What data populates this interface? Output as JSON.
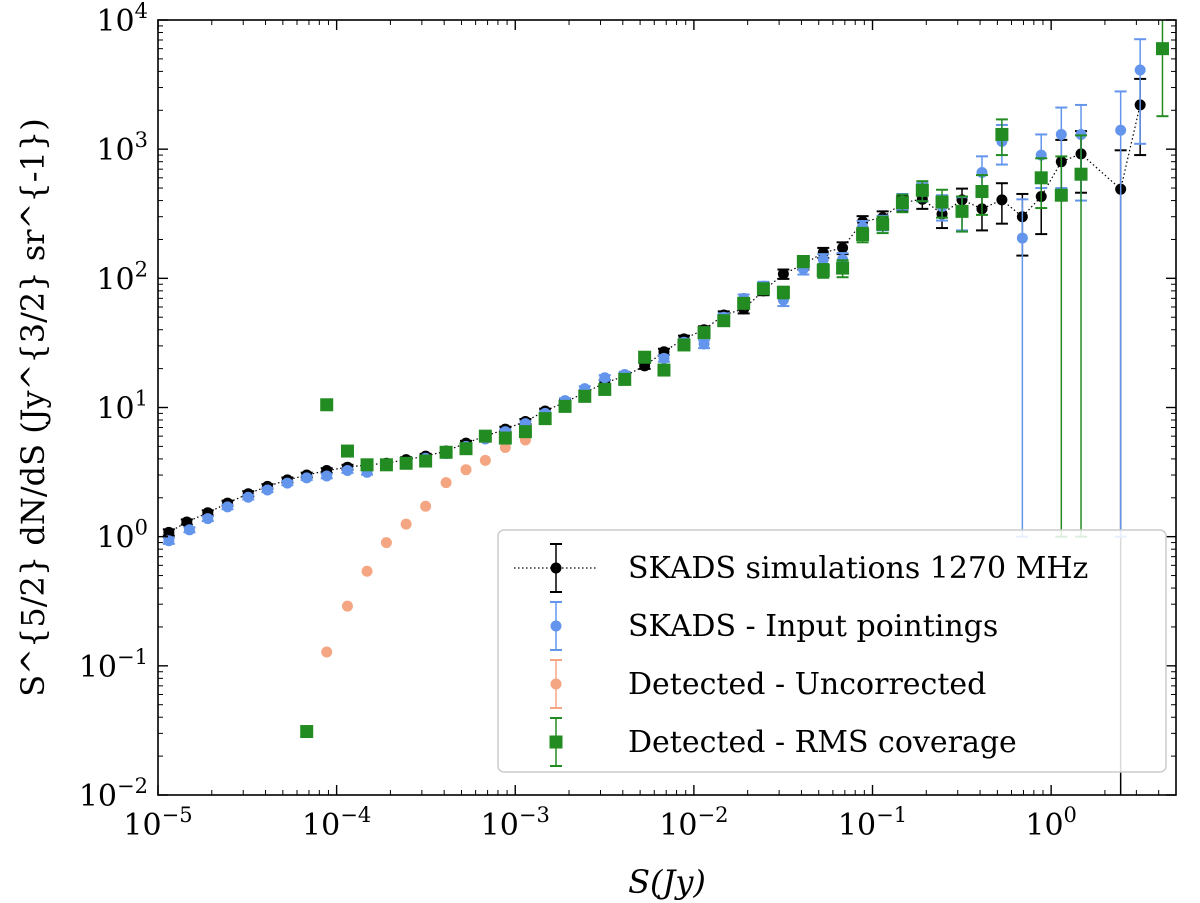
{
  "chart_data": {
    "type": "scatter",
    "xscale": "log",
    "yscale": "log",
    "xlim": [
      1e-05,
      5.0
    ],
    "ylim": [
      0.01,
      10000
    ],
    "xlabel": "S(Jy)",
    "ylabel": "S^{5/2} dN/dS (Jy^{3/2} sr^{-1})",
    "x_ticks": [
      {
        "value": 1e-05,
        "base": "10",
        "exp": "−5"
      },
      {
        "value": 0.0001,
        "base": "10",
        "exp": "−4"
      },
      {
        "value": 0.001,
        "base": "10",
        "exp": "−3"
      },
      {
        "value": 0.01,
        "base": "10",
        "exp": "−2"
      },
      {
        "value": 0.1,
        "base": "10",
        "exp": "−1"
      },
      {
        "value": 1,
        "base": "10",
        "exp": "0"
      }
    ],
    "y_ticks": [
      {
        "value": 0.01,
        "base": "10",
        "exp": "−2"
      },
      {
        "value": 0.1,
        "base": "10",
        "exp": "−1"
      },
      {
        "value": 1,
        "base": "10",
        "exp": "0"
      },
      {
        "value": 10,
        "base": "10",
        "exp": "1"
      },
      {
        "value": 100,
        "base": "10",
        "exp": "2"
      },
      {
        "value": 1000,
        "base": "10",
        "exp": "3"
      },
      {
        "value": 10000,
        "base": "10",
        "exp": "4"
      }
    ],
    "legend_position": "lower-right",
    "series": [
      {
        "name": "SKADS simulations 1270 MHz",
        "color": "#000000",
        "marker": "circle",
        "line": "dotted",
        "points": [
          {
            "x": 1.15e-05,
            "y": 1.08,
            "err": 0.06
          },
          {
            "x": 1.45e-05,
            "y": 1.3,
            "err": 0.06
          },
          {
            "x": 1.9e-05,
            "y": 1.53,
            "err": 0.07
          },
          {
            "x": 2.45e-05,
            "y": 1.82,
            "err": 0.08
          },
          {
            "x": 3.2e-05,
            "y": 2.15,
            "err": 0.1
          },
          {
            "x": 4.1e-05,
            "y": 2.45,
            "err": 0.1
          },
          {
            "x": 5.3e-05,
            "y": 2.75,
            "err": 0.12
          },
          {
            "x": 6.8e-05,
            "y": 3.0,
            "err": 0.13
          },
          {
            "x": 8.8e-05,
            "y": 3.25,
            "err": 0.14
          },
          {
            "x": 0.000115,
            "y": 3.45,
            "err": 0.15
          },
          {
            "x": 0.000148,
            "y": 3.6,
            "err": 0.15
          },
          {
            "x": 0.00019,
            "y": 3.7,
            "err": 0.16
          },
          {
            "x": 0.000245,
            "y": 3.95,
            "err": 0.17
          },
          {
            "x": 0.000315,
            "y": 4.2,
            "err": 0.18
          },
          {
            "x": 0.00041,
            "y": 4.6,
            "err": 0.2
          },
          {
            "x": 0.00053,
            "y": 5.3,
            "err": 0.22
          },
          {
            "x": 0.00068,
            "y": 6.0,
            "err": 0.25
          },
          {
            "x": 0.00088,
            "y": 6.8,
            "err": 0.3
          },
          {
            "x": 0.00114,
            "y": 7.8,
            "err": 0.35
          },
          {
            "x": 0.00147,
            "y": 9.4,
            "err": 0.4
          },
          {
            "x": 0.0019,
            "y": 11.0,
            "err": 0.5
          },
          {
            "x": 0.00245,
            "y": 13.0,
            "err": 0.6
          },
          {
            "x": 0.00317,
            "y": 15.5,
            "err": 0.8
          },
          {
            "x": 0.0041,
            "y": 17.5,
            "err": 0.9
          },
          {
            "x": 0.0053,
            "y": 21.0,
            "err": 1.1
          },
          {
            "x": 0.0068,
            "y": 27.0,
            "err": 1.5
          },
          {
            "x": 0.0088,
            "y": 34.0,
            "err": 2.0
          },
          {
            "x": 0.0114,
            "y": 40.0,
            "err": 2.5
          },
          {
            "x": 0.0147,
            "y": 52.0,
            "err": 3.5
          },
          {
            "x": 0.019,
            "y": 58.0,
            "err": 4.5
          },
          {
            "x": 0.0245,
            "y": 80.0,
            "err": 6.0
          },
          {
            "x": 0.0317,
            "y": 108.0,
            "err": 9.0
          },
          {
            "x": 0.041,
            "y": 128.0,
            "err": 11.0
          },
          {
            "x": 0.053,
            "y": 158.0,
            "err": 14.0
          },
          {
            "x": 0.068,
            "y": 172.0,
            "err": 18.0
          },
          {
            "x": 0.088,
            "y": 275.0,
            "err": 28.0
          },
          {
            "x": 0.114,
            "y": 295.0,
            "err": 35.0
          },
          {
            "x": 0.147,
            "y": 385.0,
            "err": 50.0
          },
          {
            "x": 0.19,
            "y": 410.0,
            "err": 65.0
          },
          {
            "x": 0.245,
            "y": 315.0,
            "err": 70.0
          },
          {
            "x": 0.317,
            "y": 405.0,
            "err": 90.0
          },
          {
            "x": 0.41,
            "y": 345.0,
            "err": 110.0
          },
          {
            "x": 0.53,
            "y": 405.0,
            "err": 140.0
          },
          {
            "x": 0.69,
            "y": 300.0,
            "err": 150.0
          },
          {
            "x": 0.88,
            "y": 430.0,
            "err": 210.0
          },
          {
            "x": 1.14,
            "y": 800.0,
            "err": 380.0
          },
          {
            "x": 1.47,
            "y": 920.0,
            "err": 460.0
          },
          {
            "x": 2.45,
            "y": 490.0,
            "err": 490.0
          },
          {
            "x": 3.15,
            "y": 2200.0,
            "err": 1300.0
          }
        ]
      },
      {
        "name": "SKADS - Input pointings",
        "color": "#6495ed",
        "marker": "circle",
        "line": "none",
        "points": [
          {
            "x": 1.15e-05,
            "y": 0.93,
            "err": 0.05
          },
          {
            "x": 1.5e-05,
            "y": 1.13,
            "err": 0.05
          },
          {
            "x": 1.9e-05,
            "y": 1.38,
            "err": 0.06
          },
          {
            "x": 2.45e-05,
            "y": 1.7,
            "err": 0.07
          },
          {
            "x": 3.2e-05,
            "y": 2.02,
            "err": 0.08
          },
          {
            "x": 4.1e-05,
            "y": 2.3,
            "err": 0.09
          },
          {
            "x": 5.3e-05,
            "y": 2.6,
            "err": 0.1
          },
          {
            "x": 6.8e-05,
            "y": 2.85,
            "err": 0.11
          },
          {
            "x": 8.8e-05,
            "y": 2.95,
            "err": 0.12
          },
          {
            "x": 0.000115,
            "y": 3.25,
            "err": 0.13
          },
          {
            "x": 0.000148,
            "y": 3.15,
            "err": 0.13
          },
          {
            "x": 0.00019,
            "y": 3.6,
            "err": 0.14
          },
          {
            "x": 0.000245,
            "y": 3.75,
            "err": 0.15
          },
          {
            "x": 0.000315,
            "y": 4.05,
            "err": 0.16
          },
          {
            "x": 0.00041,
            "y": 4.4,
            "err": 0.18
          },
          {
            "x": 0.00053,
            "y": 5.0,
            "err": 0.2
          },
          {
            "x": 0.00068,
            "y": 5.7,
            "err": 0.24
          },
          {
            "x": 0.00088,
            "y": 6.5,
            "err": 0.28
          },
          {
            "x": 0.00114,
            "y": 7.5,
            "err": 0.32
          },
          {
            "x": 0.00147,
            "y": 9.0,
            "err": 0.4
          },
          {
            "x": 0.0019,
            "y": 11.3,
            "err": 0.5
          },
          {
            "x": 0.00245,
            "y": 14.0,
            "err": 0.6
          },
          {
            "x": 0.00317,
            "y": 17.0,
            "err": 0.8
          },
          {
            "x": 0.0041,
            "y": 18.0,
            "err": 0.9
          },
          {
            "x": 0.0053,
            "y": 24.5,
            "err": 1.2
          },
          {
            "x": 0.0068,
            "y": 24.0,
            "err": 1.4
          },
          {
            "x": 0.0088,
            "y": 32.0,
            "err": 2.0
          },
          {
            "x": 0.0114,
            "y": 31.0,
            "err": 2.2
          },
          {
            "x": 0.0147,
            "y": 50.0,
            "err": 3.5
          },
          {
            "x": 0.019,
            "y": 70.0,
            "err": 5.0
          },
          {
            "x": 0.0245,
            "y": 87.0,
            "err": 7.0
          },
          {
            "x": 0.0317,
            "y": 68.0,
            "err": 7.0
          },
          {
            "x": 0.041,
            "y": 118.0,
            "err": 11.0
          },
          {
            "x": 0.053,
            "y": 140.0,
            "err": 14.0
          },
          {
            "x": 0.068,
            "y": 140.0,
            "err": 17.0
          },
          {
            "x": 0.088,
            "y": 250.0,
            "err": 28.0
          },
          {
            "x": 0.114,
            "y": 270.0,
            "err": 35.0
          },
          {
            "x": 0.147,
            "y": 395.0,
            "err": 55.0
          },
          {
            "x": 0.19,
            "y": 470.0,
            "err": 75.0
          },
          {
            "x": 0.245,
            "y": 360.0,
            "err": 80.0
          },
          {
            "x": 0.317,
            "y": 330.0,
            "err": 95.0
          },
          {
            "x": 0.41,
            "y": 660.0,
            "err": 220.0
          },
          {
            "x": 0.53,
            "y": 1150.0,
            "err": 390.0
          },
          {
            "x": 0.69,
            "y": 205.0,
            "err": 204.0
          },
          {
            "x": 0.88,
            "y": 900.0,
            "err": 400.0
          },
          {
            "x": 1.14,
            "y": 1300.0,
            "err": 800.0
          },
          {
            "x": 1.47,
            "y": 1300.0,
            "err": 900.0
          },
          {
            "x": 2.45,
            "y": 1400.0,
            "err": 1399.0
          },
          {
            "x": 3.15,
            "y": 4100.0,
            "err": 3000.0
          }
        ]
      },
      {
        "name": "Detected - Uncorrected",
        "color": "#f4a582",
        "marker": "circle",
        "line": "none",
        "points": [
          {
            "x": 6.8e-05,
            "y": 0.031,
            "err": 0.0
          },
          {
            "x": 8.8e-05,
            "y": 0.128,
            "err": 0.0
          },
          {
            "x": 0.000115,
            "y": 0.29,
            "err": 0.0
          },
          {
            "x": 0.000148,
            "y": 0.54,
            "err": 0.0
          },
          {
            "x": 0.00019,
            "y": 0.9,
            "err": 0.0
          },
          {
            "x": 0.000245,
            "y": 1.25,
            "err": 0.0
          },
          {
            "x": 0.000315,
            "y": 1.72,
            "err": 0.0
          },
          {
            "x": 0.00041,
            "y": 2.62,
            "err": 0.0
          },
          {
            "x": 0.00053,
            "y": 3.3,
            "err": 0.0
          },
          {
            "x": 0.00068,
            "y": 3.9,
            "err": 0.0
          },
          {
            "x": 0.00088,
            "y": 4.9,
            "err": 0.0
          },
          {
            "x": 0.00114,
            "y": 5.6,
            "err": 0.0
          }
        ]
      },
      {
        "name": "Detected - RMS coverage",
        "color": "#228b22",
        "marker": "square",
        "line": "none",
        "points": [
          {
            "x": 6.8e-05,
            "y": 0.031,
            "err": 0.0
          },
          {
            "x": 8.8e-05,
            "y": 10.5,
            "err": 0.4
          },
          {
            "x": 0.000115,
            "y": 4.6,
            "err": 0.2
          },
          {
            "x": 0.000148,
            "y": 3.6,
            "err": 0.15
          },
          {
            "x": 0.00019,
            "y": 3.6,
            "err": 0.15
          },
          {
            "x": 0.000245,
            "y": 3.7,
            "err": 0.15
          },
          {
            "x": 0.000315,
            "y": 3.85,
            "err": 0.16
          },
          {
            "x": 0.00041,
            "y": 4.5,
            "err": 0.18
          },
          {
            "x": 0.00053,
            "y": 4.8,
            "err": 0.2
          },
          {
            "x": 0.00068,
            "y": 6.0,
            "err": 0.25
          },
          {
            "x": 0.00088,
            "y": 5.8,
            "err": 0.25
          },
          {
            "x": 0.00114,
            "y": 6.5,
            "err": 0.3
          },
          {
            "x": 0.00147,
            "y": 8.2,
            "err": 0.35
          },
          {
            "x": 0.0019,
            "y": 10.2,
            "err": 0.45
          },
          {
            "x": 0.00245,
            "y": 12.2,
            "err": 0.55
          },
          {
            "x": 0.00317,
            "y": 13.8,
            "err": 0.7
          },
          {
            "x": 0.0041,
            "y": 16.5,
            "err": 0.85
          },
          {
            "x": 0.0053,
            "y": 24.5,
            "err": 1.3
          },
          {
            "x": 0.0068,
            "y": 19.5,
            "err": 1.3
          },
          {
            "x": 0.0088,
            "y": 30.5,
            "err": 2.0
          },
          {
            "x": 0.0114,
            "y": 38.0,
            "err": 2.5
          },
          {
            "x": 0.0147,
            "y": 47.0,
            "err": 3.5
          },
          {
            "x": 0.019,
            "y": 64.0,
            "err": 5.0
          },
          {
            "x": 0.0245,
            "y": 83.0,
            "err": 7.0
          },
          {
            "x": 0.0317,
            "y": 78.0,
            "err": 8.0
          },
          {
            "x": 0.041,
            "y": 135.0,
            "err": 13.0
          },
          {
            "x": 0.053,
            "y": 115.0,
            "err": 14.0
          },
          {
            "x": 0.068,
            "y": 120.0,
            "err": 18.0
          },
          {
            "x": 0.088,
            "y": 218.0,
            "err": 28.0
          },
          {
            "x": 0.114,
            "y": 262.0,
            "err": 38.0
          },
          {
            "x": 0.147,
            "y": 385.0,
            "err": 60.0
          },
          {
            "x": 0.19,
            "y": 480.0,
            "err": 85.0
          },
          {
            "x": 0.245,
            "y": 390.0,
            "err": 95.0
          },
          {
            "x": 0.317,
            "y": 330.0,
            "err": 100.0
          },
          {
            "x": 0.41,
            "y": 470.0,
            "err": 160.0
          },
          {
            "x": 0.53,
            "y": 1300.0,
            "err": 400.0
          },
          {
            "x": 0.88,
            "y": 600.0,
            "err": 250.0
          },
          {
            "x": 1.14,
            "y": 440.0,
            "err": 439.0
          },
          {
            "x": 1.47,
            "y": 640.0,
            "err": 639.0
          },
          {
            "x": 4.2,
            "y": 6000.0,
            "err": 4200.0
          }
        ]
      }
    ]
  }
}
